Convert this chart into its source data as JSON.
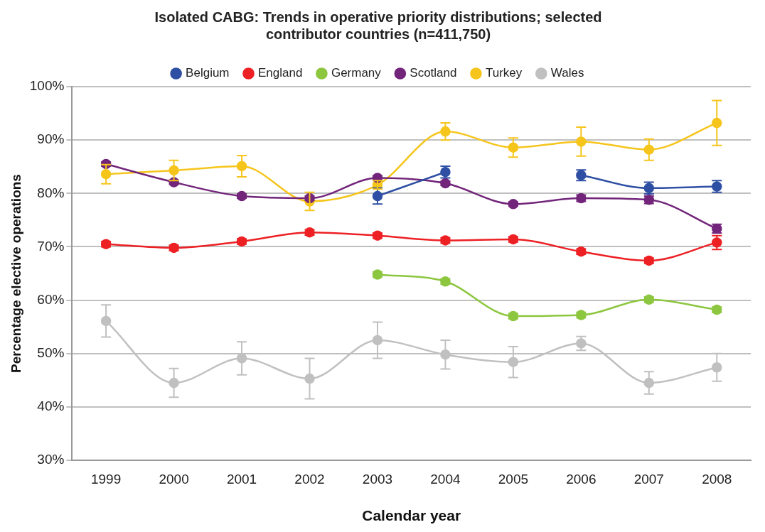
{
  "chart_data": {
    "type": "line",
    "title": "Isolated CABG: Trends in operative priority distributions; selected contributor countries (n=411,750)",
    "xlabel": "Calendar year",
    "ylabel": "Percentage elective operations",
    "categories": [
      "1999",
      "2000",
      "2001",
      "2002",
      "2003",
      "2004",
      "2005",
      "2006",
      "2007",
      "2008"
    ],
    "ylim": [
      30,
      100
    ],
    "yticks": [
      {
        "value": 30,
        "label": "30%"
      },
      {
        "value": 40,
        "label": "40%"
      },
      {
        "value": 50,
        "label": "50%"
      },
      {
        "value": 60,
        "label": "60%"
      },
      {
        "value": 70,
        "label": "70%"
      },
      {
        "value": 80,
        "label": "80%"
      },
      {
        "value": 90,
        "label": "90%"
      },
      {
        "value": 100,
        "label": "100%"
      }
    ],
    "grid": "y",
    "legend": "top",
    "marker": "circle",
    "line_style": "solid",
    "series": [
      {
        "name": "Belgium",
        "color": "#2e4fa3",
        "values": [
          null,
          null,
          null,
          null,
          79.5,
          84.0,
          null,
          83.4,
          81.0,
          81.3
        ],
        "errors": [
          null,
          null,
          null,
          null,
          1.5,
          1.1,
          null,
          1.0,
          1.1,
          1.1
        ]
      },
      {
        "name": "England",
        "color": "#ed2024",
        "values": [
          70.5,
          69.8,
          71.0,
          72.7,
          72.1,
          71.2,
          71.4,
          69.1,
          67.4,
          70.8
        ],
        "errors": [
          0.5,
          0.5,
          0.5,
          0.5,
          0.5,
          0.5,
          0.5,
          0.5,
          0.5,
          1.3
        ]
      },
      {
        "name": "Germany",
        "color": "#8dc63f",
        "values": [
          null,
          null,
          null,
          null,
          64.8,
          63.5,
          57.0,
          57.2,
          60.1,
          58.2
        ],
        "errors": [
          null,
          null,
          null,
          null,
          0.5,
          0.5,
          0.5,
          0.5,
          0.5,
          0.5
        ]
      },
      {
        "name": "Scotland",
        "color": "#72257a",
        "values": [
          85.5,
          82.1,
          79.5,
          79.1,
          82.9,
          81.9,
          78.0,
          79.1,
          78.8,
          73.4
        ],
        "errors": [
          0.4,
          0.4,
          0.4,
          0.4,
          0.4,
          0.4,
          0.4,
          0.6,
          0.7,
          0.8
        ]
      },
      {
        "name": "Turkey",
        "color": "#f6c51b",
        "values": [
          83.6,
          84.3,
          85.1,
          78.5,
          81.6,
          91.6,
          88.6,
          89.7,
          88.2,
          93.2
        ],
        "errors": [
          1.8,
          1.9,
          2.0,
          1.7,
          0.8,
          1.6,
          1.8,
          2.7,
          2.0,
          4.2
        ]
      },
      {
        "name": "Wales",
        "color": "#c0c0c0",
        "values": [
          56.1,
          44.5,
          49.1,
          45.3,
          52.5,
          49.8,
          48.4,
          51.9,
          44.5,
          47.4
        ],
        "errors": [
          3.0,
          2.7,
          3.1,
          3.8,
          3.4,
          2.7,
          2.9,
          1.3,
          2.1,
          2.6
        ]
      }
    ]
  }
}
